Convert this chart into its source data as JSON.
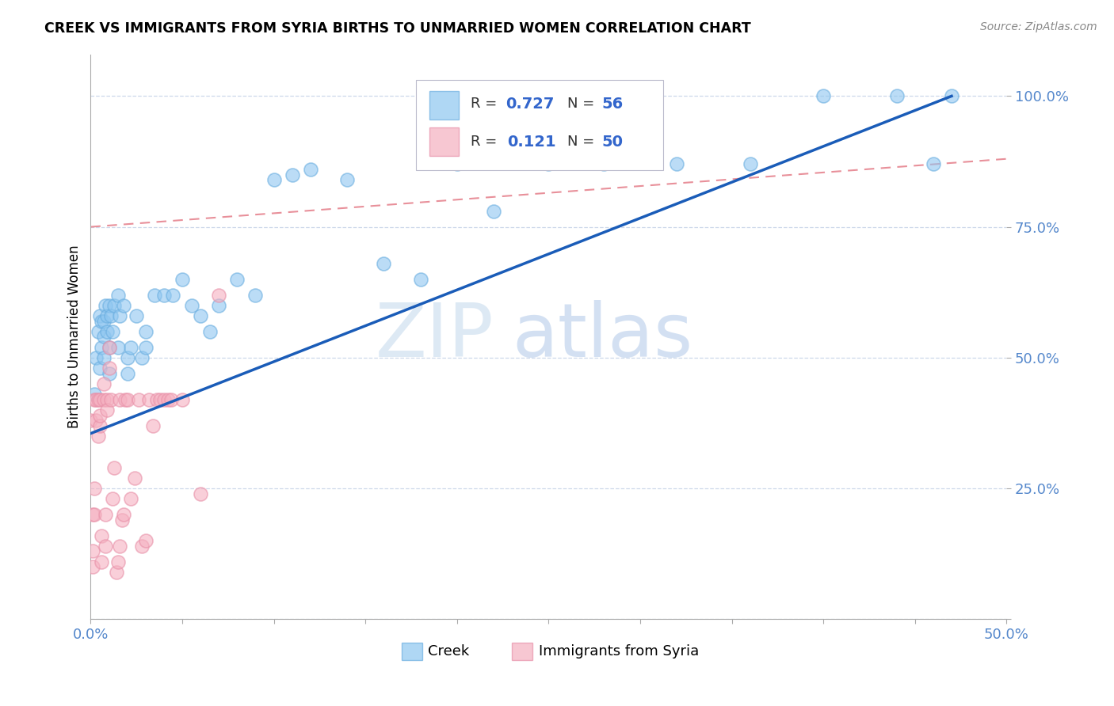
{
  "title": "CREEK VS IMMIGRANTS FROM SYRIA BIRTHS TO UNMARRIED WOMEN CORRELATION CHART",
  "source": "Source: ZipAtlas.com",
  "ylabel": "Births to Unmarried Women",
  "xlim": [
    0.0,
    0.5
  ],
  "ylim": [
    0.0,
    1.08
  ],
  "creek_color": "#8ec6f0",
  "creek_edge": "#6aaee0",
  "syria_color": "#f5b0c0",
  "syria_edge": "#e890a8",
  "creek_line_color": "#1a5cb8",
  "syria_line_color": "#e8909a",
  "creek_R": 0.727,
  "creek_N": 56,
  "syria_R": 0.121,
  "syria_N": 50,
  "watermark_zip": "ZIP",
  "watermark_atlas": "atlas",
  "creek_line_x0": 0.0,
  "creek_line_y0": 0.355,
  "creek_line_x1": 0.47,
  "creek_line_y1": 1.0,
  "syria_line_x0": 0.0,
  "syria_line_y0": 0.75,
  "syria_line_x1": 0.5,
  "syria_line_y1": 0.88,
  "creek_x": [
    0.002,
    0.003,
    0.004,
    0.005,
    0.006,
    0.006,
    0.007,
    0.007,
    0.008,
    0.009,
    0.009,
    0.01,
    0.01,
    0.011,
    0.012,
    0.013,
    0.015,
    0.016,
    0.018,
    0.02,
    0.022,
    0.025,
    0.028,
    0.03,
    0.035,
    0.04,
    0.045,
    0.05,
    0.055,
    0.06,
    0.065,
    0.07,
    0.08,
    0.09,
    0.1,
    0.11,
    0.12,
    0.14,
    0.16,
    0.18,
    0.2,
    0.22,
    0.25,
    0.28,
    0.32,
    0.36,
    0.4,
    0.44,
    0.46,
    0.47,
    0.005,
    0.007,
    0.01,
    0.015,
    0.02,
    0.03
  ],
  "creek_y": [
    0.43,
    0.5,
    0.55,
    0.58,
    0.57,
    0.52,
    0.54,
    0.57,
    0.6,
    0.55,
    0.58,
    0.52,
    0.6,
    0.58,
    0.55,
    0.6,
    0.62,
    0.58,
    0.6,
    0.5,
    0.52,
    0.58,
    0.5,
    0.55,
    0.62,
    0.62,
    0.62,
    0.65,
    0.6,
    0.58,
    0.55,
    0.6,
    0.65,
    0.62,
    0.84,
    0.85,
    0.86,
    0.84,
    0.68,
    0.65,
    0.87,
    0.78,
    0.87,
    0.87,
    0.87,
    0.87,
    1.0,
    1.0,
    0.87,
    1.0,
    0.48,
    0.5,
    0.47,
    0.52,
    0.47,
    0.52
  ],
  "syria_x": [
    0.0,
    0.001,
    0.001,
    0.001,
    0.002,
    0.002,
    0.002,
    0.003,
    0.003,
    0.004,
    0.004,
    0.005,
    0.005,
    0.005,
    0.006,
    0.006,
    0.007,
    0.007,
    0.008,
    0.008,
    0.009,
    0.009,
    0.01,
    0.01,
    0.011,
    0.012,
    0.013,
    0.014,
    0.015,
    0.016,
    0.016,
    0.017,
    0.018,
    0.019,
    0.02,
    0.022,
    0.024,
    0.026,
    0.028,
    0.03,
    0.032,
    0.034,
    0.036,
    0.038,
    0.04,
    0.042,
    0.044,
    0.05,
    0.06,
    0.07
  ],
  "syria_y": [
    0.38,
    0.1,
    0.13,
    0.2,
    0.25,
    0.2,
    0.42,
    0.42,
    0.38,
    0.35,
    0.42,
    0.37,
    0.42,
    0.39,
    0.11,
    0.16,
    0.42,
    0.45,
    0.14,
    0.2,
    0.42,
    0.4,
    0.48,
    0.52,
    0.42,
    0.23,
    0.29,
    0.09,
    0.11,
    0.14,
    0.42,
    0.19,
    0.2,
    0.42,
    0.42,
    0.23,
    0.27,
    0.42,
    0.14,
    0.15,
    0.42,
    0.37,
    0.42,
    0.42,
    0.42,
    0.42,
    0.42,
    0.42,
    0.24,
    0.62
  ]
}
